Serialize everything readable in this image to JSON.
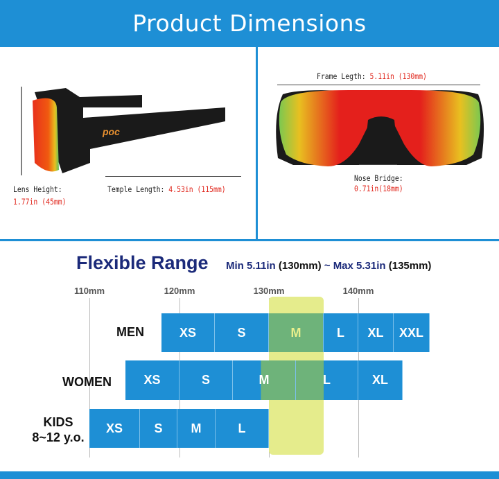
{
  "banner": {
    "title": "Product Dimensions"
  },
  "side_view": {
    "lens_height_label": "Lens Height:",
    "lens_height_value": "1.77in (45mm)",
    "temple_label": "Temple Length:",
    "temple_value": "4.53in (115mm)",
    "logo_text": "poc"
  },
  "front_view": {
    "frame_label": "Frame Legth:",
    "frame_value": "5.11in (130mm)",
    "nose_label": "Nose Bridge:",
    "nose_value": "0.71in(18mm)"
  },
  "range": {
    "title": "Flexible Range",
    "min_label": "Min 5.11in",
    "min_mm": "(130mm)",
    "sep": "~",
    "max_label": "Max 5.31in",
    "max_mm": "(135mm)",
    "ticks": [
      "110mm",
      "120mm",
      "130mm",
      "140mm"
    ],
    "rows": [
      {
        "label": "MEN",
        "sizes": [
          "XS",
          "S",
          "M",
          "L",
          "XL",
          "XXL"
        ]
      },
      {
        "label": "WOMEN",
        "sizes": [
          "XS",
          "S",
          "M",
          "L",
          "XL"
        ]
      },
      {
        "label": "KIDS",
        "sublabel": "8~12 y.o.",
        "sizes": [
          "XS",
          "S",
          "M",
          "L"
        ]
      }
    ],
    "colors": {
      "bar": "#1e8fd5",
      "highlight": "#e5ec8c",
      "title": "#1b2a7a",
      "value_red": "#e0261c"
    }
  }
}
